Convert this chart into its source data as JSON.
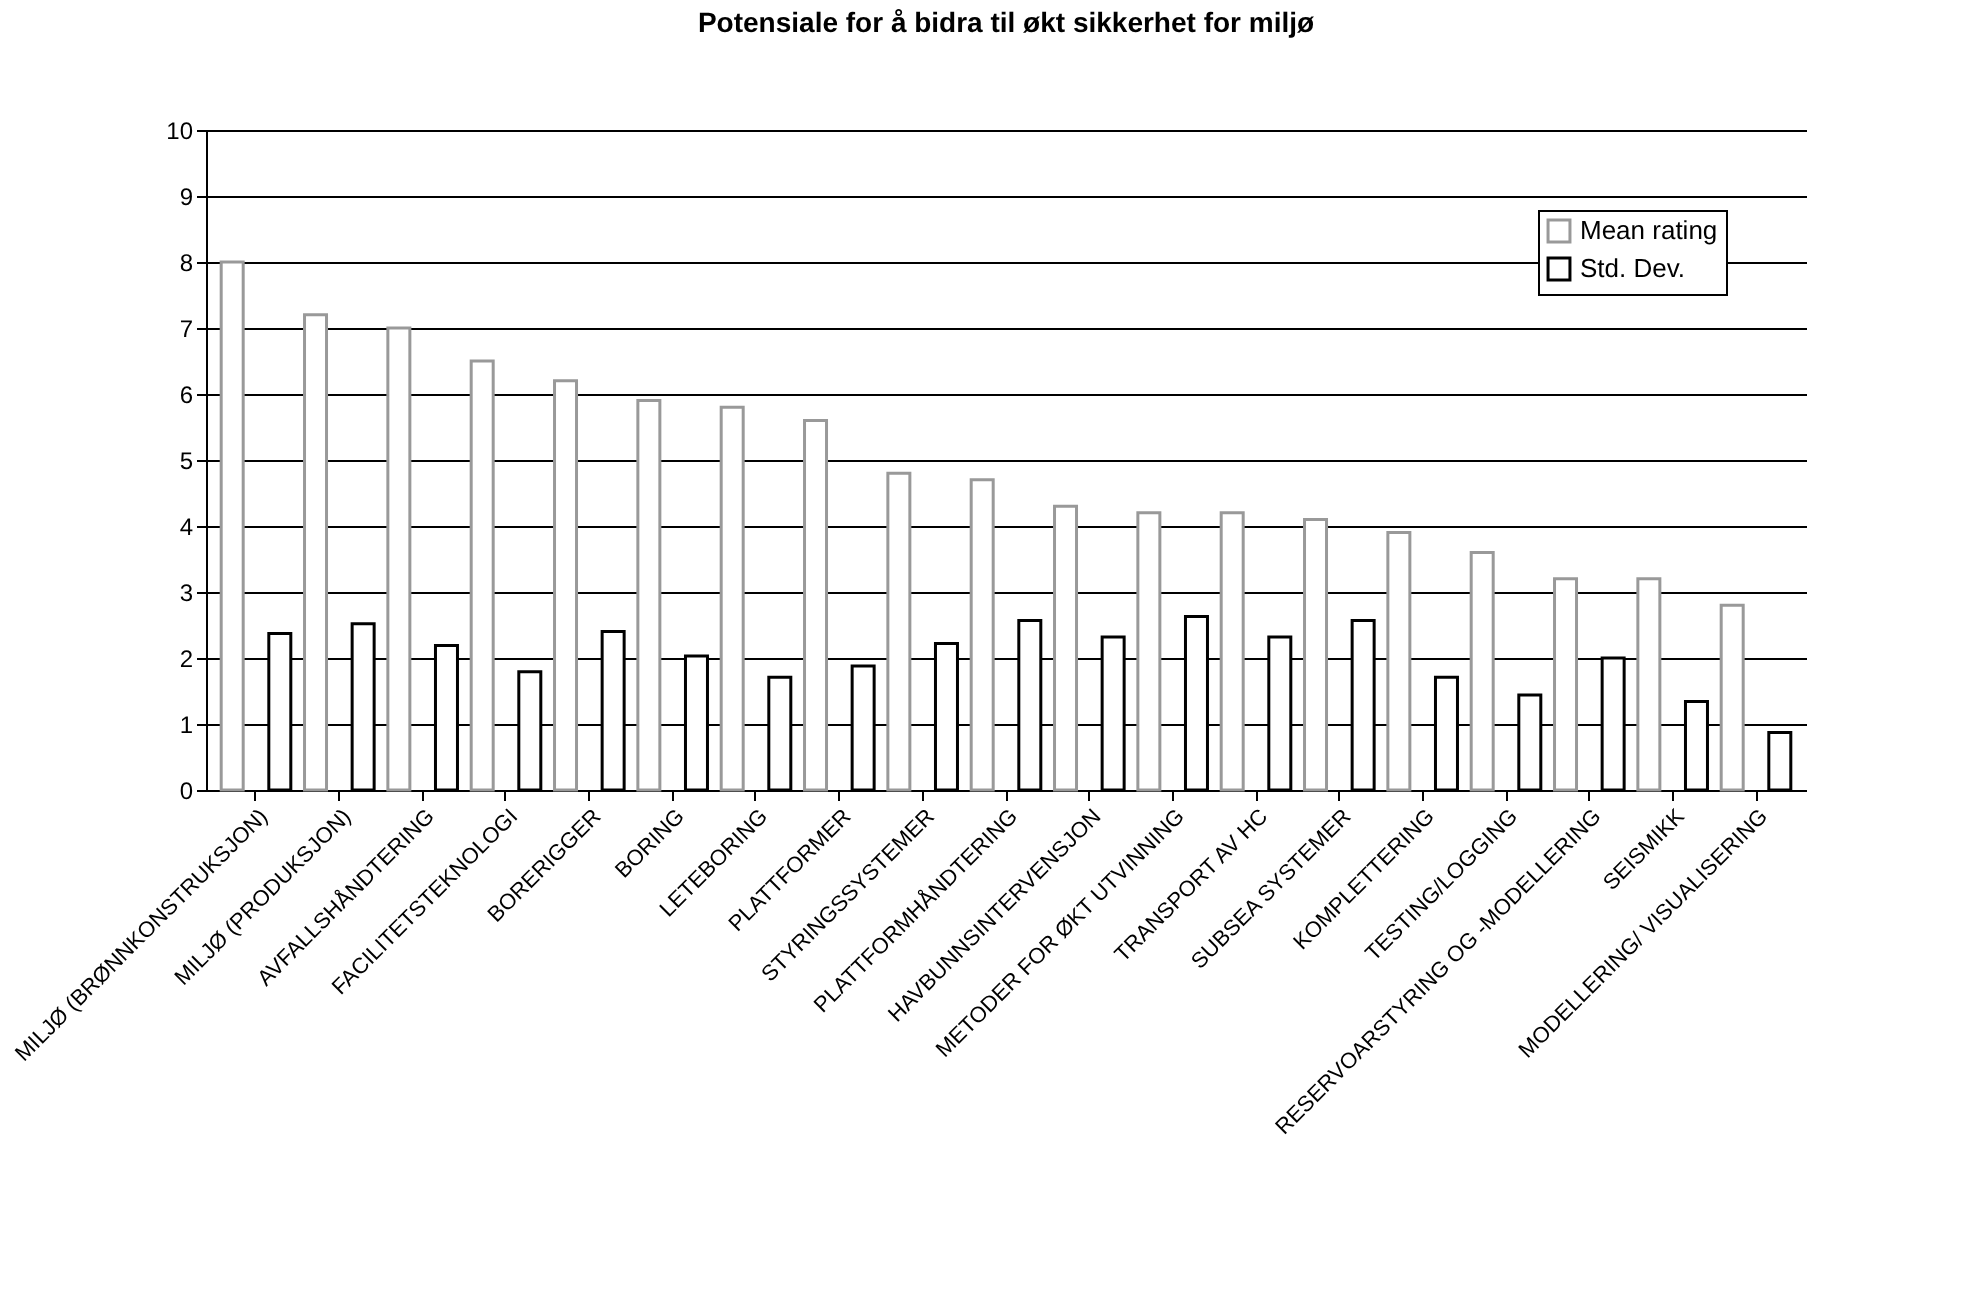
{
  "chart_data": {
    "type": "bar",
    "title": "Potensiale for å bidra til økt sikkerhet for miljø",
    "categories": [
      "MILJØ (BRØNNKONSTRUKSJON)",
      "MILJØ (PRODUKSJON)",
      "AVFALLSHÅNDTERING",
      "FACILITETSTEKNOLOGI",
      "BORERIGGER",
      "BORING",
      "LETEBORING",
      "PLATTFORMER",
      "STYRINGSSYSTEMER",
      "PLATTFORMHÅNDTERING",
      "HAVBUNNSINTERVENSJON",
      "METODER FOR ØKT UTVINNING",
      "TRANSPORT AV HC",
      "SUBSEA SYSTEMER",
      "KOMPLETTERING",
      "TESTING/LOGGING",
      "RESERVOARSTYRING OG -MODELLERING",
      "SEISMIKK",
      "MODELLERING/ VISUALISERING"
    ],
    "series": [
      {
        "name": "Mean rating",
        "color": "#999999",
        "values": [
          8.0,
          7.2,
          7.0,
          6.5,
          6.2,
          5.9,
          5.8,
          5.6,
          4.8,
          4.7,
          4.3,
          4.2,
          4.2,
          4.1,
          3.9,
          3.6,
          3.2,
          3.2,
          2.8
        ]
      },
      {
        "name": "Std. Dev.",
        "color": "#000000",
        "values": [
          2.37,
          2.52,
          2.19,
          1.79,
          2.4,
          2.03,
          1.71,
          1.88,
          2.22,
          2.57,
          2.32,
          2.63,
          2.32,
          2.57,
          1.71,
          1.44,
          2.0,
          1.34,
          0.87
        ]
      }
    ],
    "ylim": [
      0,
      10
    ],
    "yticks": [
      0,
      1,
      2,
      3,
      4,
      5,
      6,
      7,
      8,
      9,
      10
    ],
    "grid": "y",
    "legend": "top right"
  }
}
